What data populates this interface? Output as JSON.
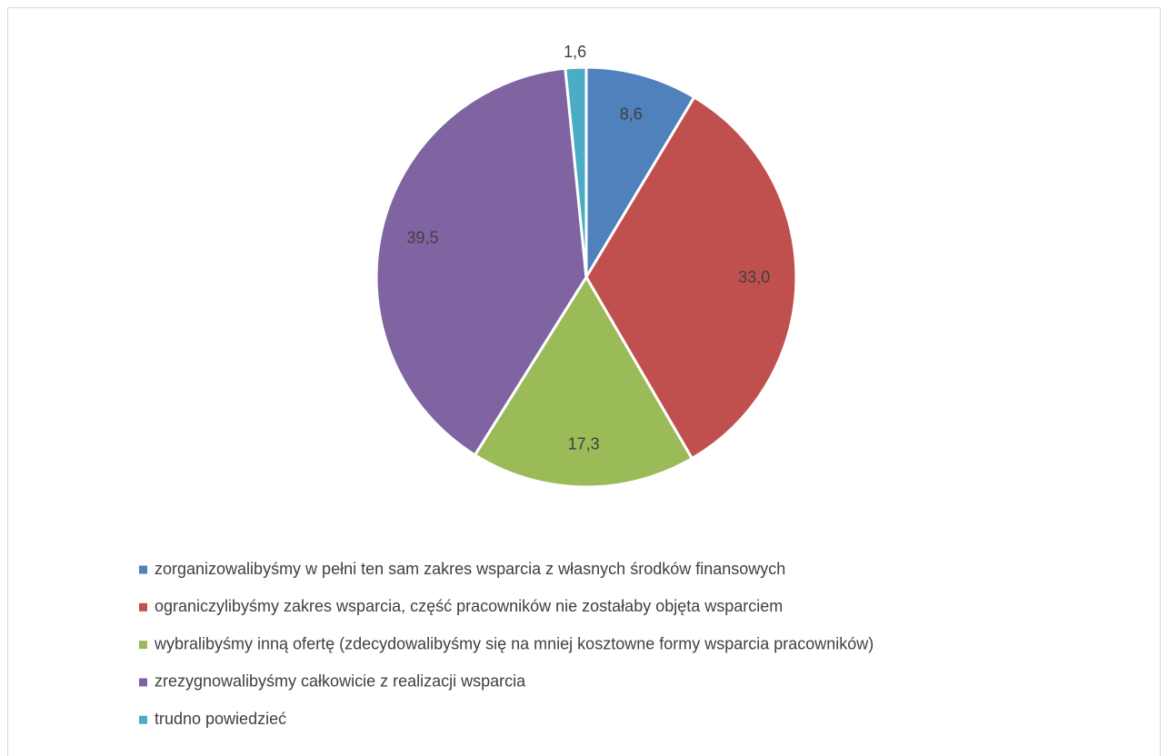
{
  "chart_data": {
    "type": "pie",
    "categories": [
      "zorganizowalibyśmy w pełni ten sam zakres wsparcia z własnych środków finansowych",
      "ograniczylibyśmy zakres wsparcia, część pracowników nie zostałaby objęta wsparciem",
      "wybralibyśmy inną ofertę (zdecydowalibyśmy się na mniej kosztowne formy wsparcia pracowników)",
      "zrezygnowalibyśmy całkowicie z realizacji wsparcia",
      "trudno powiedzieć"
    ],
    "values": [
      8.6,
      33.0,
      17.3,
      39.5,
      1.6
    ],
    "value_labels": [
      "8,6",
      "33,0",
      "17,3",
      "39,5",
      "1,6"
    ],
    "colors": [
      "#4f81bd",
      "#c0504d",
      "#9bbb59",
      "#8064a2",
      "#4bacc6"
    ],
    "legend": "bottom"
  }
}
